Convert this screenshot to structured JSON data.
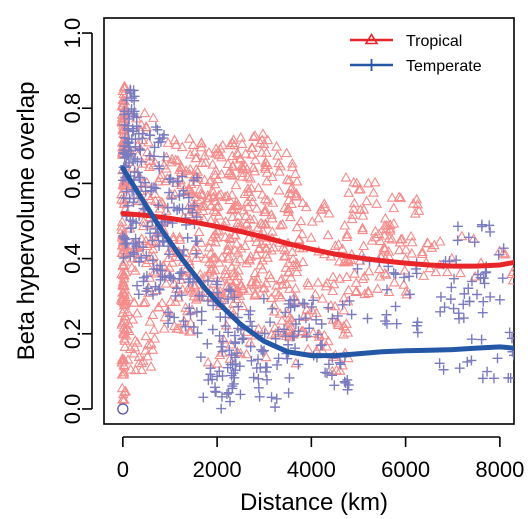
{
  "chart_data": {
    "type": "scatter",
    "xlabel": "Distance (km)",
    "ylabel": "Beta hypervolume overlap",
    "xlim": [
      -400,
      8300
    ],
    "ylim": [
      -0.04,
      1.04
    ],
    "xticks": [
      0,
      2000,
      4000,
      6000,
      8000
    ],
    "yticks": [
      0.0,
      0.2,
      0.4,
      0.6,
      0.8,
      1.0
    ],
    "xtick_labels": [
      "0",
      "2000",
      "4000",
      "6000",
      "8000"
    ],
    "ytick_labels": [
      "0.0",
      "0.2",
      "0.4",
      "0.6",
      "0.8",
      "1.0"
    ],
    "legend_position": "top-right",
    "grid": false,
    "series": [
      {
        "name": "Tropical",
        "marker": "triangle-open",
        "point_color": "#f58b8b",
        "line_color": "#e8262a",
        "trend": {
          "x": [
            0,
            500,
            1000,
            1500,
            2000,
            2500,
            3000,
            3500,
            4000,
            4500,
            5000,
            5500,
            6000,
            6500,
            7000,
            7500,
            8000,
            8300
          ],
          "y": [
            0.52,
            0.515,
            0.507,
            0.497,
            0.485,
            0.472,
            0.457,
            0.44,
            0.425,
            0.412,
            0.402,
            0.394,
            0.388,
            0.383,
            0.38,
            0.38,
            0.383,
            0.39
          ]
        },
        "clusters": [
          {
            "x": [
              -30,
              60
            ],
            "y": [
              0.02,
              0.86
            ],
            "n": 140
          },
          {
            "x": [
              60,
              700
            ],
            "y": [
              0.1,
              0.8
            ],
            "n": 110
          },
          {
            "x": [
              700,
              1500
            ],
            "y": [
              0.2,
              0.72
            ],
            "n": 110
          },
          {
            "x": [
              1500,
              2300
            ],
            "y": [
              0.28,
              0.72
            ],
            "n": 140
          },
          {
            "x": [
              2300,
              3100
            ],
            "y": [
              0.3,
              0.74
            ],
            "n": 150
          },
          {
            "x": [
              3100,
              3700
            ],
            "y": [
              0.2,
              0.7
            ],
            "n": 80
          },
          {
            "x": [
              1800,
              3700
            ],
            "y": [
              0.12,
              0.35
            ],
            "n": 45
          },
          {
            "x": [
              3700,
              4400
            ],
            "y": [
              0.15,
              0.55
            ],
            "n": 45
          },
          {
            "x": [
              4400,
              4800
            ],
            "y": [
              0.1,
              0.45
            ],
            "n": 35
          },
          {
            "x": [
              4700,
              5400
            ],
            "y": [
              0.3,
              0.62
            ],
            "n": 45
          },
          {
            "x": [
              5400,
              5700
            ],
            "y": [
              0.3,
              0.52
            ],
            "n": 25
          },
          {
            "x": [
              5700,
              6300
            ],
            "y": [
              0.3,
              0.6
            ],
            "n": 25
          },
          {
            "x": [
              6300,
              8300
            ],
            "y": [
              0.33,
              0.46
            ],
            "n": 25
          }
        ]
      },
      {
        "name": "Temperate",
        "marker": "plus",
        "point_color": "#7b7bc0",
        "line_color": "#2457a6",
        "trend": {
          "x": [
            0,
            250,
            500,
            750,
            1000,
            1250,
            1500,
            1750,
            2000,
            2500,
            3000,
            3500,
            4000,
            4500,
            5000,
            5500,
            6000,
            6500,
            7000,
            7500,
            8000,
            8300
          ],
          "y": [
            0.64,
            0.59,
            0.54,
            0.49,
            0.445,
            0.4,
            0.36,
            0.32,
            0.285,
            0.225,
            0.18,
            0.152,
            0.142,
            0.142,
            0.147,
            0.152,
            0.155,
            0.156,
            0.158,
            0.162,
            0.165,
            0.162
          ]
        },
        "clusters": [
          {
            "x": [
              0,
              300
            ],
            "y": [
              0.4,
              0.85
            ],
            "n": 90
          },
          {
            "x": [
              300,
              900
            ],
            "y": [
              0.3,
              0.75
            ],
            "n": 75
          },
          {
            "x": [
              900,
              1600
            ],
            "y": [
              0.2,
              0.62
            ],
            "n": 60
          },
          {
            "x": [
              1600,
              2400
            ],
            "y": [
              0.0,
              0.35
            ],
            "n": 60
          },
          {
            "x": [
              2400,
              3700
            ],
            "y": [
              0.0,
              0.3
            ],
            "n": 60
          },
          {
            "x": [
              3700,
              4800
            ],
            "y": [
              0.05,
              0.3
            ],
            "n": 35
          },
          {
            "x": [
              4800,
              6300
            ],
            "y": [
              0.2,
              0.4
            ],
            "n": 25
          },
          {
            "x": [
              6700,
              8300
            ],
            "y": [
              0.08,
              0.5
            ],
            "n": 60
          }
        ]
      }
    ]
  }
}
